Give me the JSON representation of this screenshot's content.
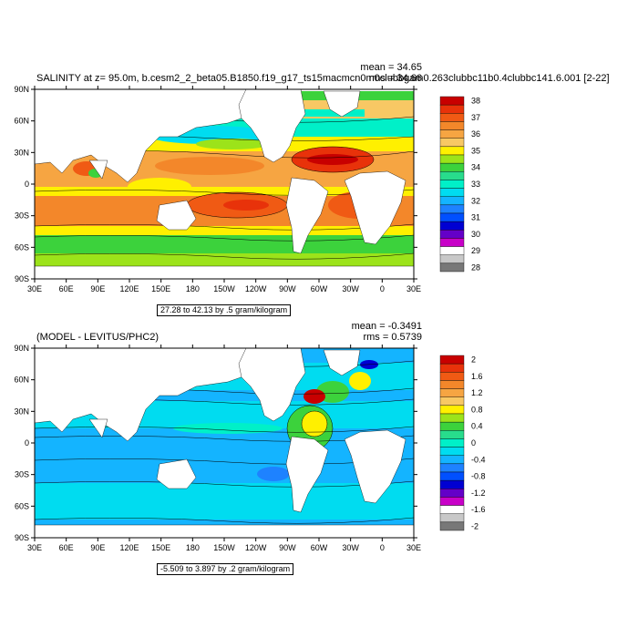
{
  "panels": [
    {
      "title": "SALINITY at z=  95.0m, b.cesm2_2_beta05.B1850.f19_g17_ts15macmcn0m0clubbgam0.263clubbc11b0.4clubbc141.6.001 [2-22]",
      "stats": [
        "mean = 34.65",
        "rms = 34.66"
      ],
      "contour_info": "27.28 to 42.13 by .5 gram/kilogram",
      "colorbar": {
        "labels": [
          "38",
          "37",
          "36",
          "35",
          "34",
          "33",
          "32",
          "31",
          "30",
          "29",
          "28"
        ],
        "colors": [
          "#c80000",
          "#e8320a",
          "#f05a14",
          "#f3872a",
          "#f6a542",
          "#f8c864",
          "#fff000",
          "#9ce31a",
          "#3cd23c",
          "#28dc8c",
          "#00f0c8",
          "#00dcf0",
          "#14b4ff",
          "#1e82ff",
          "#0050ff",
          "#0000d2",
          "#6400c8",
          "#c800c8",
          "#ffffff",
          "#c8c8c8",
          "#787878"
        ]
      }
    },
    {
      "title": "(MODEL - LEVITUS/PHC2)",
      "stats": [
        "mean = -0.3491",
        "rms = 0.5739"
      ],
      "contour_info": "-5.509 to 3.897 by .2 gram/kilogram",
      "colorbar": {
        "labels": [
          "2",
          "1.6",
          "1.2",
          "0.8",
          "0.4",
          "0",
          "-0.4",
          "-0.8",
          "-1.2",
          "-1.6",
          "-2"
        ],
        "colors": [
          "#c80000",
          "#e8320a",
          "#f05a14",
          "#f3872a",
          "#f6a542",
          "#f8c864",
          "#fff000",
          "#9ce31a",
          "#3cd23c",
          "#28dc8c",
          "#00f0c8",
          "#00dcf0",
          "#14b4ff",
          "#1e82ff",
          "#0050ff",
          "#0000d2",
          "#6400c8",
          "#c800c8",
          "#ffffff",
          "#c8c8c8",
          "#787878"
        ]
      }
    }
  ],
  "map_axes": {
    "x_ticks": [
      "30E",
      "60E",
      "90E",
      "120E",
      "150E",
      "180",
      "150W",
      "120W",
      "90W",
      "60W",
      "30W",
      "0",
      "30E"
    ],
    "y_ticks": [
      "90N",
      "60N",
      "30N",
      "0",
      "30S",
      "60S",
      "90S"
    ]
  },
  "chart_data": [
    {
      "type": "heatmap",
      "title": "SALINITY at z=  95.0m, b.cesm2_2_beta05.B1850.f19_g17_ts15macmcn0m0clubbgam0.263clubbc11b0.4clubbc141.6.001 [2-22]",
      "mean": 34.65,
      "rms": 34.66,
      "contour_min": 27.28,
      "contour_max": 42.13,
      "contour_interval": 0.5,
      "units": "gram/kilogram",
      "colorbar_levels": [
        28,
        29,
        30,
        31,
        32,
        33,
        34,
        35,
        36,
        37,
        38
      ],
      "x_ticks": [
        "30E",
        "60E",
        "90E",
        "120E",
        "150E",
        "180",
        "150W",
        "120W",
        "90W",
        "60W",
        "30W",
        "0",
        "30E"
      ],
      "y_ticks": [
        "90N",
        "60N",
        "30N",
        "0",
        "30S",
        "60S",
        "90S"
      ]
    },
    {
      "type": "heatmap",
      "title": "(MODEL - LEVITUS/PHC2)",
      "mean": -0.3491,
      "rms": 0.5739,
      "contour_min": -5.509,
      "contour_max": 3.897,
      "contour_interval": 0.2,
      "units": "gram/kilogram",
      "colorbar_levels": [
        -2,
        -1.6,
        -1.2,
        -0.8,
        -0.4,
        0,
        0.4,
        0.8,
        1.2,
        1.6,
        2
      ],
      "x_ticks": [
        "30E",
        "60E",
        "90E",
        "120E",
        "150E",
        "180",
        "150W",
        "120W",
        "90W",
        "60W",
        "30W",
        "0",
        "30E"
      ],
      "y_ticks": [
        "90N",
        "60N",
        "30N",
        "0",
        "30S",
        "60S",
        "90S"
      ]
    }
  ]
}
